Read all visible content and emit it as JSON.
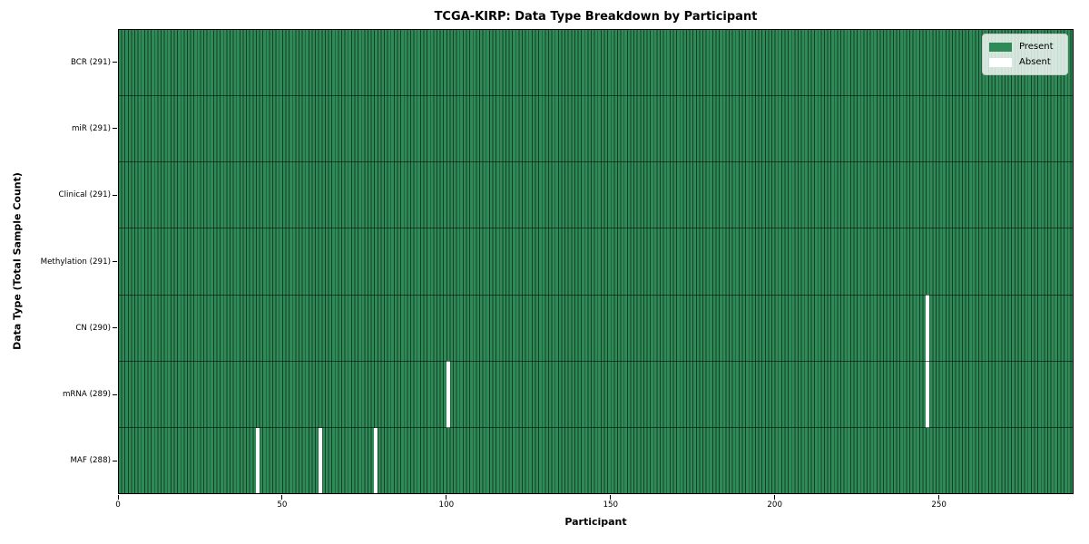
{
  "colors": {
    "present": "#2e8b57",
    "absent": "#ffffff",
    "cell_edge": "rgba(0,0,0,0.55)",
    "row_boundary": "rgba(0,0,0,0.55)",
    "spine": "#000000",
    "figure_background": "#ffffff",
    "legend_background": "rgba(255,255,255,0.8)"
  },
  "chart_data": {
    "type": "heatmap",
    "title": "TCGA-KIRP: Data Type Breakdown by Participant",
    "xlabel": "Participant",
    "ylabel": "Data Type (Total Sample Count)",
    "xlim": [
      0,
      291
    ],
    "n_participants": 291,
    "x_ticks": [
      0,
      50,
      100,
      150,
      200,
      250
    ],
    "grid": false,
    "legend_position": "upper right",
    "legend": [
      {
        "label": "Present",
        "color": "#2e8b57"
      },
      {
        "label": "Absent",
        "color": "#ffffff"
      }
    ],
    "rows": [
      {
        "data_type": "BCR",
        "label": "BCR (291)",
        "present_count": 291,
        "absent_participants": []
      },
      {
        "data_type": "miR",
        "label": "miR (291)",
        "present_count": 291,
        "absent_participants": []
      },
      {
        "data_type": "Clinical",
        "label": "Clinical (291)",
        "present_count": 291,
        "absent_participants": []
      },
      {
        "data_type": "Methylation",
        "label": "Methylation (291)",
        "present_count": 291,
        "absent_participants": []
      },
      {
        "data_type": "CN",
        "label": "CN (290)",
        "present_count": 290,
        "absent_participants": [
          246
        ]
      },
      {
        "data_type": "mRNA",
        "label": "mRNA (289)",
        "present_count": 289,
        "absent_participants": [
          100,
          246
        ]
      },
      {
        "data_type": "MAF",
        "label": "MAF (288)",
        "present_count": 288,
        "absent_participants": [
          42,
          61,
          78
        ]
      }
    ]
  }
}
